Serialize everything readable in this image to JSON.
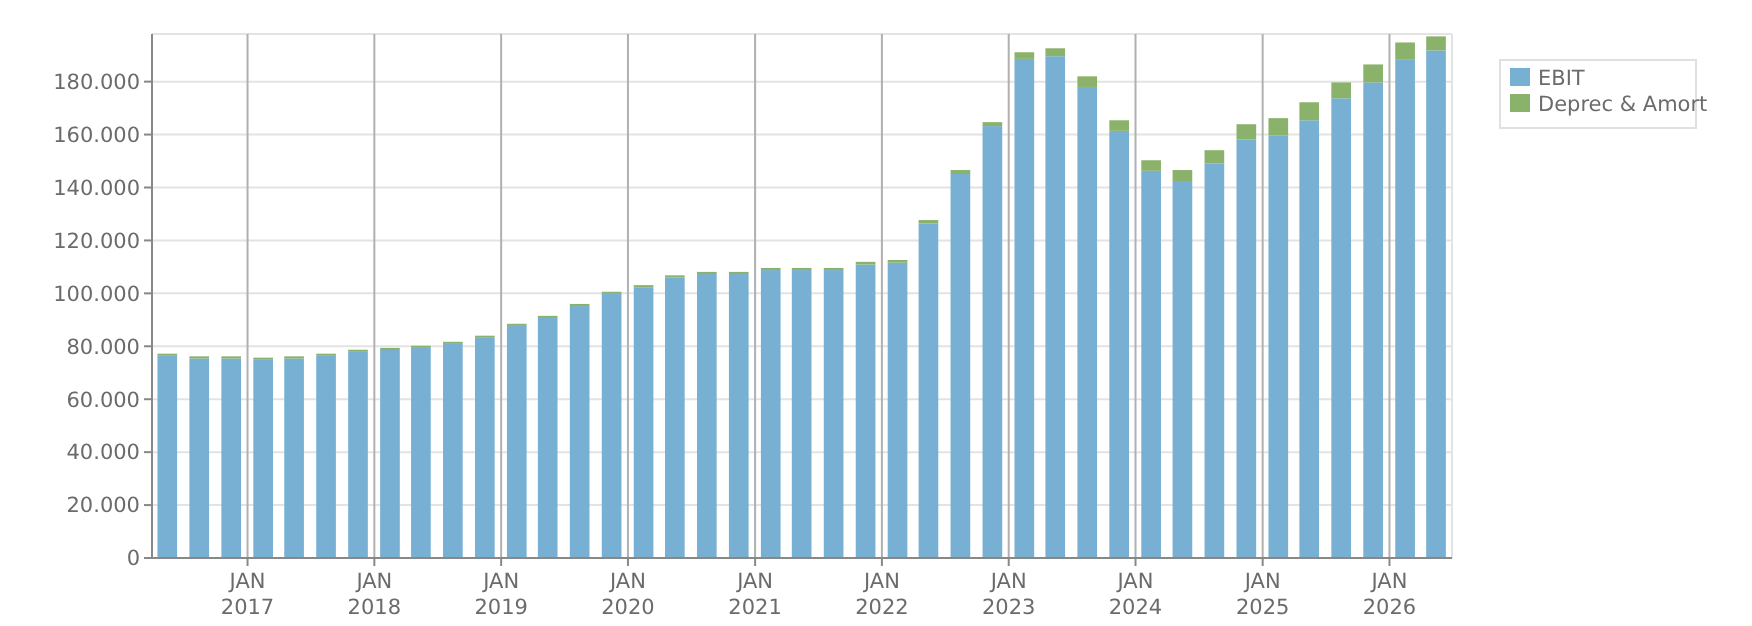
{
  "chart_data": {
    "type": "bar",
    "stacked": true,
    "x": [
      "2016-05-15",
      "2016-08-15",
      "2016-11-15",
      "2017-02-15",
      "2017-05-15",
      "2017-08-15",
      "2017-11-15",
      "2018-02-15",
      "2018-05-15",
      "2018-08-15",
      "2018-11-15",
      "2019-02-15",
      "2019-05-15",
      "2019-08-15",
      "2019-11-15",
      "2020-02-15",
      "2020-05-15",
      "2020-08-15",
      "2020-11-15",
      "2021-02-15",
      "2021-05-15",
      "2021-08-15",
      "2021-11-15",
      "2022-02-15",
      "2022-05-15",
      "2022-08-15",
      "2022-11-15",
      "2023-02-15",
      "2023-05-15",
      "2023-08-15",
      "2023-11-15",
      "2024-02-15",
      "2024-05-15",
      "2024-08-15",
      "2024-11-15",
      "2025-02-15",
      "2025-05-15",
      "2025-08-15",
      "2025-11-15",
      "2026-02-15",
      "2026-05-15"
    ],
    "series": [
      {
        "name": "EBIT",
        "color": "#77b0d2",
        "values": [
          76400,
          75400,
          75400,
          74900,
          75400,
          76400,
          77900,
          78600,
          79400,
          80900,
          83200,
          87700,
          90700,
          95200,
          99800,
          102300,
          106000,
          107300,
          107300,
          108800,
          108800,
          108800,
          110900,
          111600,
          126400,
          145100,
          163200,
          188600,
          189600,
          178000,
          161400,
          146300,
          142100,
          149100,
          158100,
          159700,
          165400,
          173700,
          179700,
          188500,
          191800
        ]
      },
      {
        "name": "Deprec & Amort",
        "color": "#8bb26a",
        "values": [
          800,
          800,
          800,
          800,
          800,
          800,
          800,
          800,
          800,
          800,
          800,
          800,
          800,
          800,
          800,
          800,
          800,
          800,
          800,
          800,
          800,
          800,
          1000,
          1000,
          1300,
          1500,
          1500,
          2500,
          3000,
          4000,
          4000,
          4000,
          4500,
          5000,
          5800,
          6500,
          6800,
          6000,
          6800,
          6300,
          5300
        ]
      }
    ],
    "xlim": [
      "2016-04-01",
      "2026-06-30"
    ],
    "xticks": [
      {
        "value": "2017-01-01",
        "label": "JAN 2017"
      },
      {
        "value": "2018-01-01",
        "label": "JAN 2018"
      },
      {
        "value": "2019-01-01",
        "label": "JAN 2019"
      },
      {
        "value": "2020-01-01",
        "label": "JAN 2020"
      },
      {
        "value": "2021-01-01",
        "label": "JAN 2021"
      },
      {
        "value": "2022-01-01",
        "label": "JAN 2022"
      },
      {
        "value": "2023-01-01",
        "label": "JAN 2023"
      },
      {
        "value": "2024-01-01",
        "label": "JAN 2024"
      },
      {
        "value": "2025-01-01",
        "label": "JAN 2025"
      },
      {
        "value": "2026-01-01",
        "label": "JAN 2026"
      }
    ],
    "ylim": [
      0,
      198000
    ],
    "yticks": [
      0,
      {
        "value": 20000,
        "label": "20.000"
      },
      {
        "value": 40000,
        "label": "40.000"
      },
      {
        "value": 60000,
        "label": "60.000"
      },
      {
        "value": 80000,
        "label": "80.000"
      },
      {
        "value": 100000,
        "label": "100.000"
      },
      {
        "value": 120000,
        "label": "120.000"
      },
      {
        "value": 140000,
        "label": "140.000"
      },
      {
        "value": 160000,
        "label": "160.000"
      },
      {
        "value": 180000,
        "label": "180.000"
      }
    ],
    "grid": true,
    "legend": "top right"
  }
}
